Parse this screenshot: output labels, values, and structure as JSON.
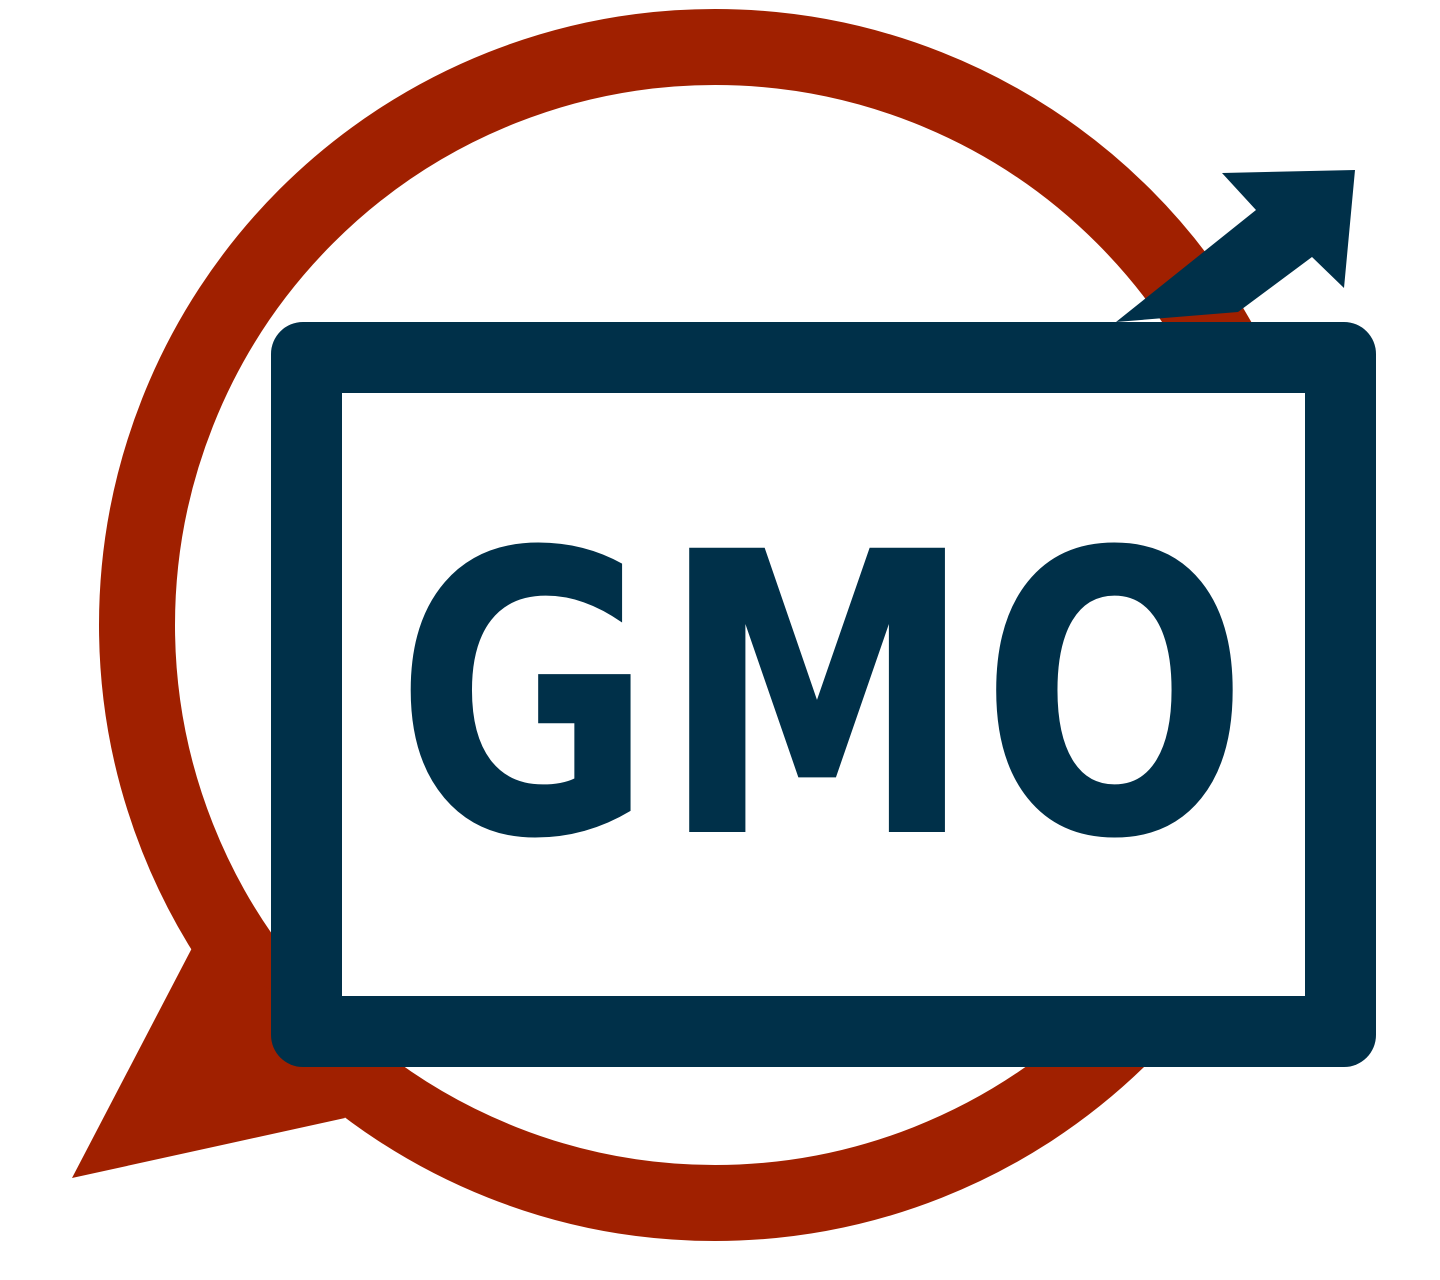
{
  "logo": {
    "text": "GMO",
    "colors": {
      "ring": "#a02000",
      "frame": "#003049",
      "text": "#003049",
      "background": "#ffffff",
      "inner": "#ffffff"
    },
    "icons": {
      "ring": "speech-bubble-ring-icon",
      "arrow": "trend-up-arrow-icon",
      "frame": "tv-screen-frame-icon"
    }
  }
}
